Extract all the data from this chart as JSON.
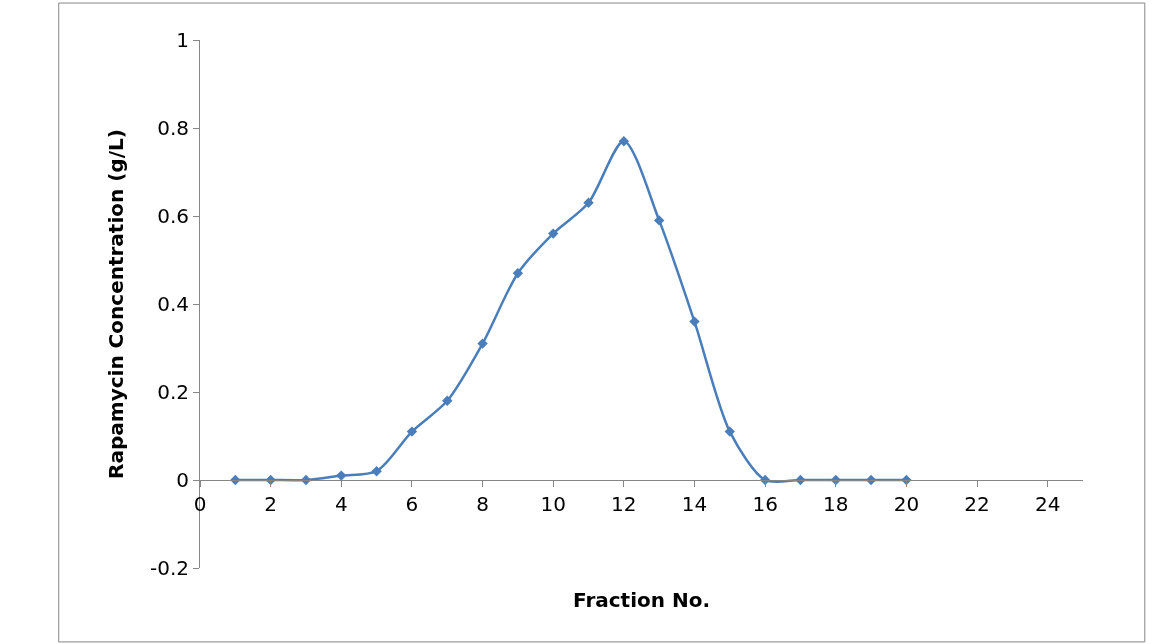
{
  "chart_data": {
    "type": "line",
    "xlabel": "Fraction No.",
    "ylabel": "Rapamycin Concentration (g/L)",
    "x": [
      1,
      2,
      3,
      4,
      5,
      6,
      7,
      8,
      9,
      10,
      11,
      12,
      13,
      14,
      15,
      16,
      17,
      18,
      19,
      20
    ],
    "series": [
      {
        "color": "#4a7ebb",
        "values": [
          0,
          0,
          0,
          0.01,
          0.02,
          0.11,
          0.18,
          0.31,
          0.47,
          0.56,
          0.63,
          0.77,
          0.59,
          0.36,
          0.11,
          0,
          0,
          0,
          0,
          0
        ]
      }
    ],
    "xlim": [
      0,
      25
    ],
    "xticks": [
      0,
      2,
      4,
      6,
      8,
      10,
      12,
      14,
      16,
      18,
      20,
      22,
      24
    ],
    "ylim": [
      -0.2,
      1
    ],
    "yticks": [
      -0.2,
      0,
      0.2,
      0.4,
      0.6,
      0.8,
      1
    ],
    "marker": "diamond",
    "line_style": "solid"
  }
}
